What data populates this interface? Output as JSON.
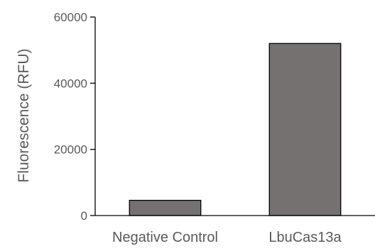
{
  "chart_data": {
    "type": "bar",
    "title": "",
    "xlabel": "",
    "ylabel": "Fluorescence (RFU)",
    "categories": [
      "Negative Control",
      "LbuCas13a"
    ],
    "values": [
      4600,
      52000
    ],
    "ylim": [
      0,
      60000
    ],
    "yticks": [
      0,
      20000,
      40000,
      60000
    ],
    "ytick_labels": [
      "0",
      "20000",
      "40000",
      "60000"
    ],
    "grid": false,
    "legend": "none",
    "colors": {
      "bar_fill": "#767171",
      "bar_stroke": "#000000",
      "text": "#595959"
    }
  }
}
